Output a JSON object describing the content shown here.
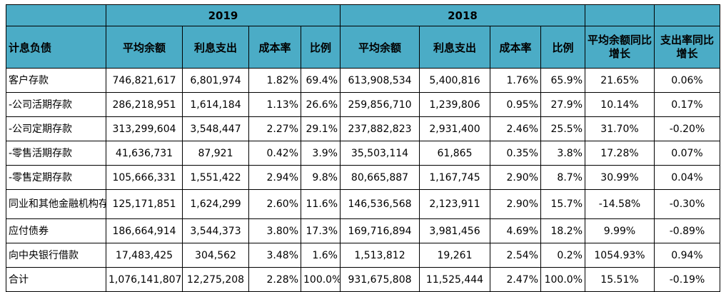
{
  "header": {
    "year_a": "2019",
    "year_b": "2018",
    "col_item": "计息负债",
    "avg_balance": "平均余额",
    "interest": "利息支出",
    "cost_rate": "成本率",
    "ratio": "比例",
    "yoy_avg_balance": "平均余额同比增长",
    "yoy_rate": "支出率同比增长"
  },
  "rows": [
    {
      "item": "客户存款",
      "a_avg": "746,821,617",
      "a_int": "6,801,974",
      "a_rate": "1.82%",
      "a_ratio": "69.4%",
      "b_avg": "613,908,534",
      "b_int": "5,400,816",
      "b_rate": "1.76%",
      "b_ratio": "65.9%",
      "yoy_avg": "21.65%",
      "yoy_rate": "0.06%"
    },
    {
      "item": "-公司活期存款",
      "a_avg": "286,218,951",
      "a_int": "1,614,184",
      "a_rate": "1.13%",
      "a_ratio": "26.6%",
      "b_avg": "259,856,710",
      "b_int": "1,239,806",
      "b_rate": "0.95%",
      "b_ratio": "27.9%",
      "yoy_avg": "10.14%",
      "yoy_rate": "0.17%"
    },
    {
      "item": "-公司定期存款",
      "a_avg": "313,299,604",
      "a_int": "3,548,447",
      "a_rate": "2.27%",
      "a_ratio": "29.1%",
      "b_avg": "237,882,823",
      "b_int": "2,931,400",
      "b_rate": "2.46%",
      "b_ratio": "25.5%",
      "yoy_avg": "31.70%",
      "yoy_rate": "-0.20%"
    },
    {
      "item": "-零售活期存款",
      "a_avg": "41,636,731",
      "a_int": "87,921",
      "a_rate": "0.42%",
      "a_ratio": "3.9%",
      "b_avg": "35,503,114",
      "b_int": "61,865",
      "b_rate": "0.35%",
      "b_ratio": "3.8%",
      "yoy_avg": "17.28%",
      "yoy_rate": "0.07%"
    },
    {
      "item": "-零售定期存款",
      "a_avg": "105,666,331",
      "a_int": "1,551,422",
      "a_rate": "2.94%",
      "a_ratio": "9.8%",
      "b_avg": "80,665,887",
      "b_int": "1,167,745",
      "b_rate": "2.90%",
      "b_ratio": "8.7%",
      "yoy_avg": "30.99%",
      "yoy_rate": "0.04%"
    },
    {
      "item": "同业和其他金融机构存拆放款项",
      "a_avg": "125,171,851",
      "a_int": "1,624,299",
      "a_rate": "2.60%",
      "a_ratio": "11.6%",
      "b_avg": "146,536,568",
      "b_int": "2,123,911",
      "b_rate": "2.90%",
      "b_ratio": "15.7%",
      "yoy_avg": "-14.58%",
      "yoy_rate": "-0.30%"
    },
    {
      "item": "应付债券",
      "a_avg": "186,664,914",
      "a_int": "3,544,373",
      "a_rate": "3.80%",
      "a_ratio": "17.3%",
      "b_avg": "169,716,894",
      "b_int": "3,981,456",
      "b_rate": "4.69%",
      "b_ratio": "18.2%",
      "yoy_avg": "9.99%",
      "yoy_rate": "-0.89%"
    },
    {
      "item": "向中央银行借款",
      "a_avg": "17,483,425",
      "a_int": "304,562",
      "a_rate": "3.48%",
      "a_ratio": "1.6%",
      "b_avg": "1,513,812",
      "b_int": "19,261",
      "b_rate": "2.54%",
      "b_ratio": "0.2%",
      "yoy_avg": "1054.93%",
      "yoy_rate": "0.94%"
    },
    {
      "item": "合计",
      "a_avg": "1,076,141,807",
      "a_int": "12,275,208",
      "a_rate": "2.28%",
      "a_ratio": "100.0%",
      "b_avg": "931,675,808",
      "b_int": "11,525,444",
      "b_rate": "2.47%",
      "b_ratio": "100.0%",
      "yoy_avg": "15.51%",
      "yoy_rate": "-0.19%"
    }
  ],
  "colors": {
    "header_bg": "#4bacc6",
    "border": "#000000"
  }
}
